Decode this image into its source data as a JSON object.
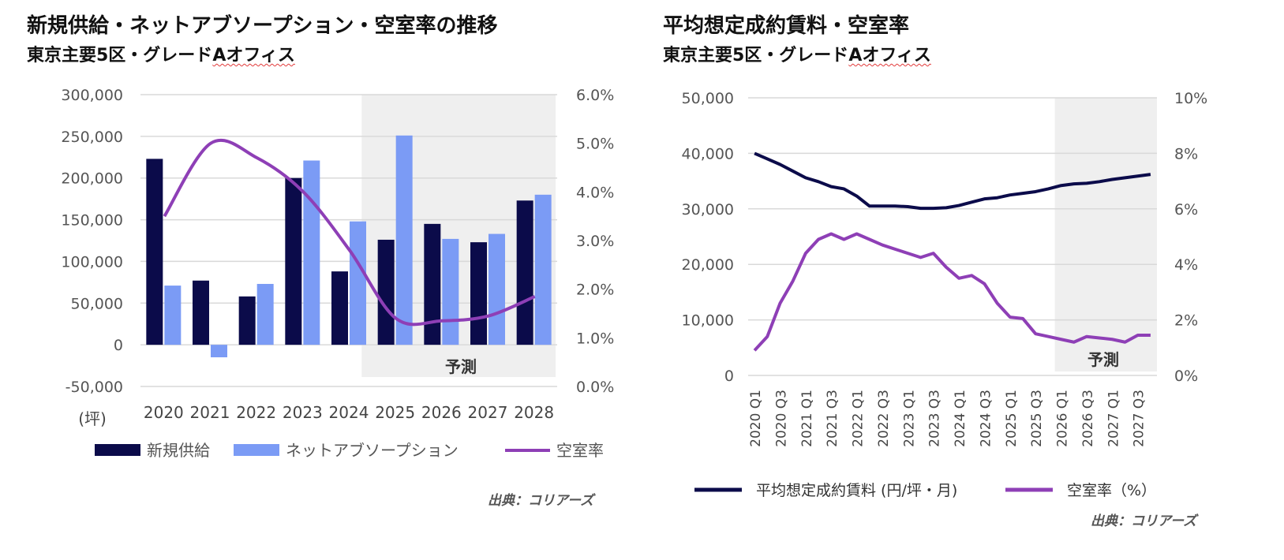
{
  "charts": [
    {
      "title": "新規供給・ネットアブソープション・空室率の推移",
      "subtitle_prefix": "東京主要5区・グレード",
      "subtitle_suffix": "Aオフィス",
      "source": "出典：コリアーズ",
      "unit_label": "(坪)",
      "forecast_label": "予測"
    },
    {
      "title": "平均想定成約賃料・空室率",
      "subtitle_prefix": "東京主要5区・グレード",
      "subtitle_suffix": "Aオフィス",
      "source": "出典：コリアーズ",
      "forecast_label": "予測"
    }
  ],
  "colors": {
    "navy": "#0b0b4a",
    "light_blue": "#7b9bf5",
    "purple": "#8e3fb6",
    "grid": "#d9d9d9",
    "forecast_bg": "#efefef"
  },
  "chart_data": [
    {
      "type": "bar",
      "title": "新規供給・ネットアブソープション・空室率の推移",
      "categories": [
        "2020",
        "2021",
        "2022",
        "2023",
        "2024",
        "2025",
        "2026",
        "2027",
        "2028"
      ],
      "y_left": {
        "ticks": [
          "300,000",
          "250,000",
          "200,000",
          "150,000",
          "100,000",
          "50,000",
          "0",
          "-50,000"
        ],
        "ylim": [
          -50000,
          300000
        ]
      },
      "y_right": {
        "ticks": [
          "6.0%",
          "5.0%",
          "4.0%",
          "3.0%",
          "2.0%",
          "1.0%",
          "0.0%"
        ],
        "ylim": [
          0,
          6
        ]
      },
      "forecast_from_index": 5,
      "series": [
        {
          "name": "新規供給",
          "axis": "left",
          "kind": "bar",
          "color": "#0b0b4a",
          "values": [
            223000,
            77000,
            58000,
            200000,
            88000,
            126000,
            145000,
            123000,
            173000
          ]
        },
        {
          "name": "ネットアブソープション",
          "axis": "left",
          "kind": "bar",
          "color": "#7b9bf5",
          "values": [
            71000,
            -15000,
            73000,
            221000,
            148000,
            251000,
            127000,
            133000,
            180000
          ]
        },
        {
          "name": "空室率",
          "axis": "right",
          "kind": "line",
          "color": "#8e3fb6",
          "values": [
            3.5,
            5.0,
            4.7,
            4.0,
            2.8,
            1.4,
            1.35,
            1.45,
            1.85
          ]
        }
      ],
      "legend": [
        "新規供給",
        "ネットアブソープション",
        "空室率"
      ]
    },
    {
      "type": "line",
      "title": "平均想定成約賃料・空室率",
      "x_ticks": [
        "2020 Q1",
        "2020 Q3",
        "2021 Q1",
        "2021 Q3",
        "2022 Q1",
        "2022 Q3",
        "2023 Q1",
        "2023 Q3",
        "2024 Q1",
        "2024 Q3",
        "2025 Q1",
        "2025 Q3",
        "2026 Q1",
        "2026 Q3",
        "2027 Q1",
        "2027 Q3"
      ],
      "x_quarters": [
        "2020 Q1",
        "2020 Q2",
        "2020 Q3",
        "2020 Q4",
        "2021 Q1",
        "2021 Q2",
        "2021 Q3",
        "2021 Q4",
        "2022 Q1",
        "2022 Q2",
        "2022 Q3",
        "2022 Q4",
        "2023 Q1",
        "2023 Q2",
        "2023 Q3",
        "2023 Q4",
        "2024 Q1",
        "2024 Q2",
        "2024 Q3",
        "2024 Q4",
        "2025 Q1",
        "2025 Q2",
        "2025 Q3",
        "2025 Q4",
        "2026 Q1",
        "2026 Q2",
        "2026 Q3",
        "2026 Q4",
        "2027 Q1",
        "2027 Q2",
        "2027 Q3",
        "2027 Q4"
      ],
      "y_left": {
        "ticks": [
          "50,000",
          "40,000",
          "30,000",
          "20,000",
          "10,000",
          "0"
        ],
        "ylim": [
          0,
          50000
        ]
      },
      "y_right": {
        "ticks": [
          "10%",
          "8%",
          "6%",
          "4%",
          "2%",
          "0%"
        ],
        "ylim": [
          0,
          10
        ]
      },
      "forecast_from_index": 24,
      "series": [
        {
          "name": "平均想定成約賃料 (円/坪・月)",
          "axis": "left",
          "color": "#0b0b4a",
          "values": [
            40000,
            39000,
            38000,
            36800,
            35600,
            34900,
            34000,
            33600,
            32300,
            30500,
            30500,
            30500,
            30400,
            30100,
            30100,
            30200,
            30600,
            31200,
            31800,
            32000,
            32500,
            32800,
            33100,
            33600,
            34200,
            34500,
            34600,
            34900,
            35300,
            35600,
            35900,
            36200
          ]
        },
        {
          "name": "空室率 (%)",
          "axis": "right",
          "color": "#8e3fb6",
          "values": [
            0.9,
            1.4,
            2.6,
            3.4,
            4.4,
            4.9,
            5.1,
            4.9,
            5.1,
            4.9,
            4.7,
            4.55,
            4.4,
            4.25,
            4.4,
            3.9,
            3.5,
            3.6,
            3.3,
            2.6,
            2.1,
            2.05,
            1.5,
            1.4,
            1.3,
            1.2,
            1.4,
            1.35,
            1.3,
            1.2,
            1.45,
            1.45
          ]
        }
      ],
      "legend": [
        "平均想定成約賃料 (円/坪・月)",
        "空室率（%）"
      ]
    }
  ]
}
